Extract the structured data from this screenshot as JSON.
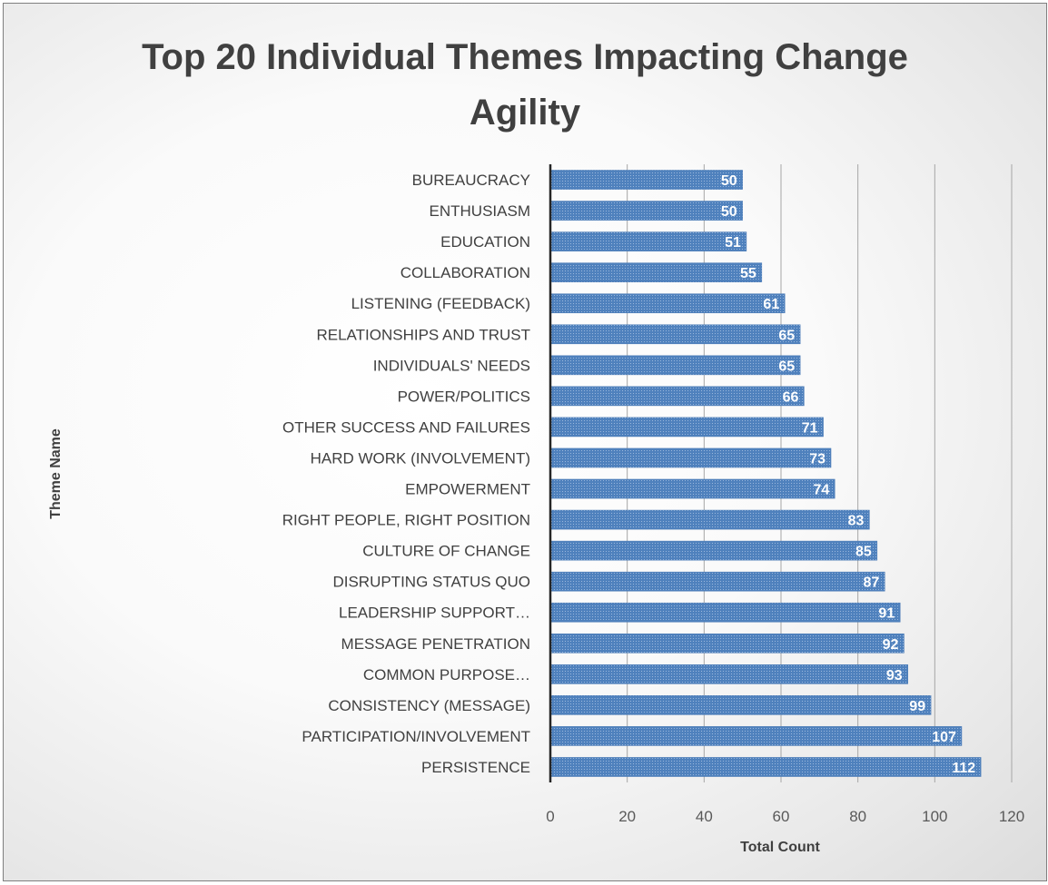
{
  "chart_data": {
    "type": "bar",
    "orientation": "horizontal",
    "title": "Top 20 Individual Themes Impacting Change Agility",
    "title_lines": [
      "Top 20 Individual Themes Impacting Change",
      "Agility"
    ],
    "xlabel": "Total Count",
    "ylabel": "Theme Name",
    "xlim": [
      0,
      120
    ],
    "xticks": [
      "0",
      "20",
      "40",
      "60",
      "80",
      "100",
      "120"
    ],
    "grid": "vertical",
    "legend": "none",
    "bar_color": "#4f81bd",
    "categories": [
      "BUREAUCRACY",
      "ENTHUSIASM",
      "EDUCATION",
      "COLLABORATION",
      "LISTENING (FEEDBACK)",
      "RELATIONSHIPS AND TRUST",
      "INDIVIDUALS' NEEDS",
      "POWER/POLITICS",
      "OTHER SUCCESS AND FAILURES",
      "HARD WORK (INVOLVEMENT)",
      "EMPOWERMENT",
      "RIGHT PEOPLE, RIGHT POSITION",
      "CULTURE OF CHANGE",
      "DISRUPTING STATUS QUO",
      "LEADERSHIP SUPPORT…",
      "MESSAGE PENETRATION",
      "COMMON PURPOSE…",
      "CONSISTENCY (MESSAGE)",
      "PARTICIPATION/INVOLVEMENT",
      "PERSISTENCE"
    ],
    "values": [
      50,
      50,
      51,
      55,
      61,
      65,
      65,
      66,
      71,
      73,
      74,
      83,
      85,
      87,
      91,
      92,
      93,
      99,
      107,
      112
    ]
  }
}
